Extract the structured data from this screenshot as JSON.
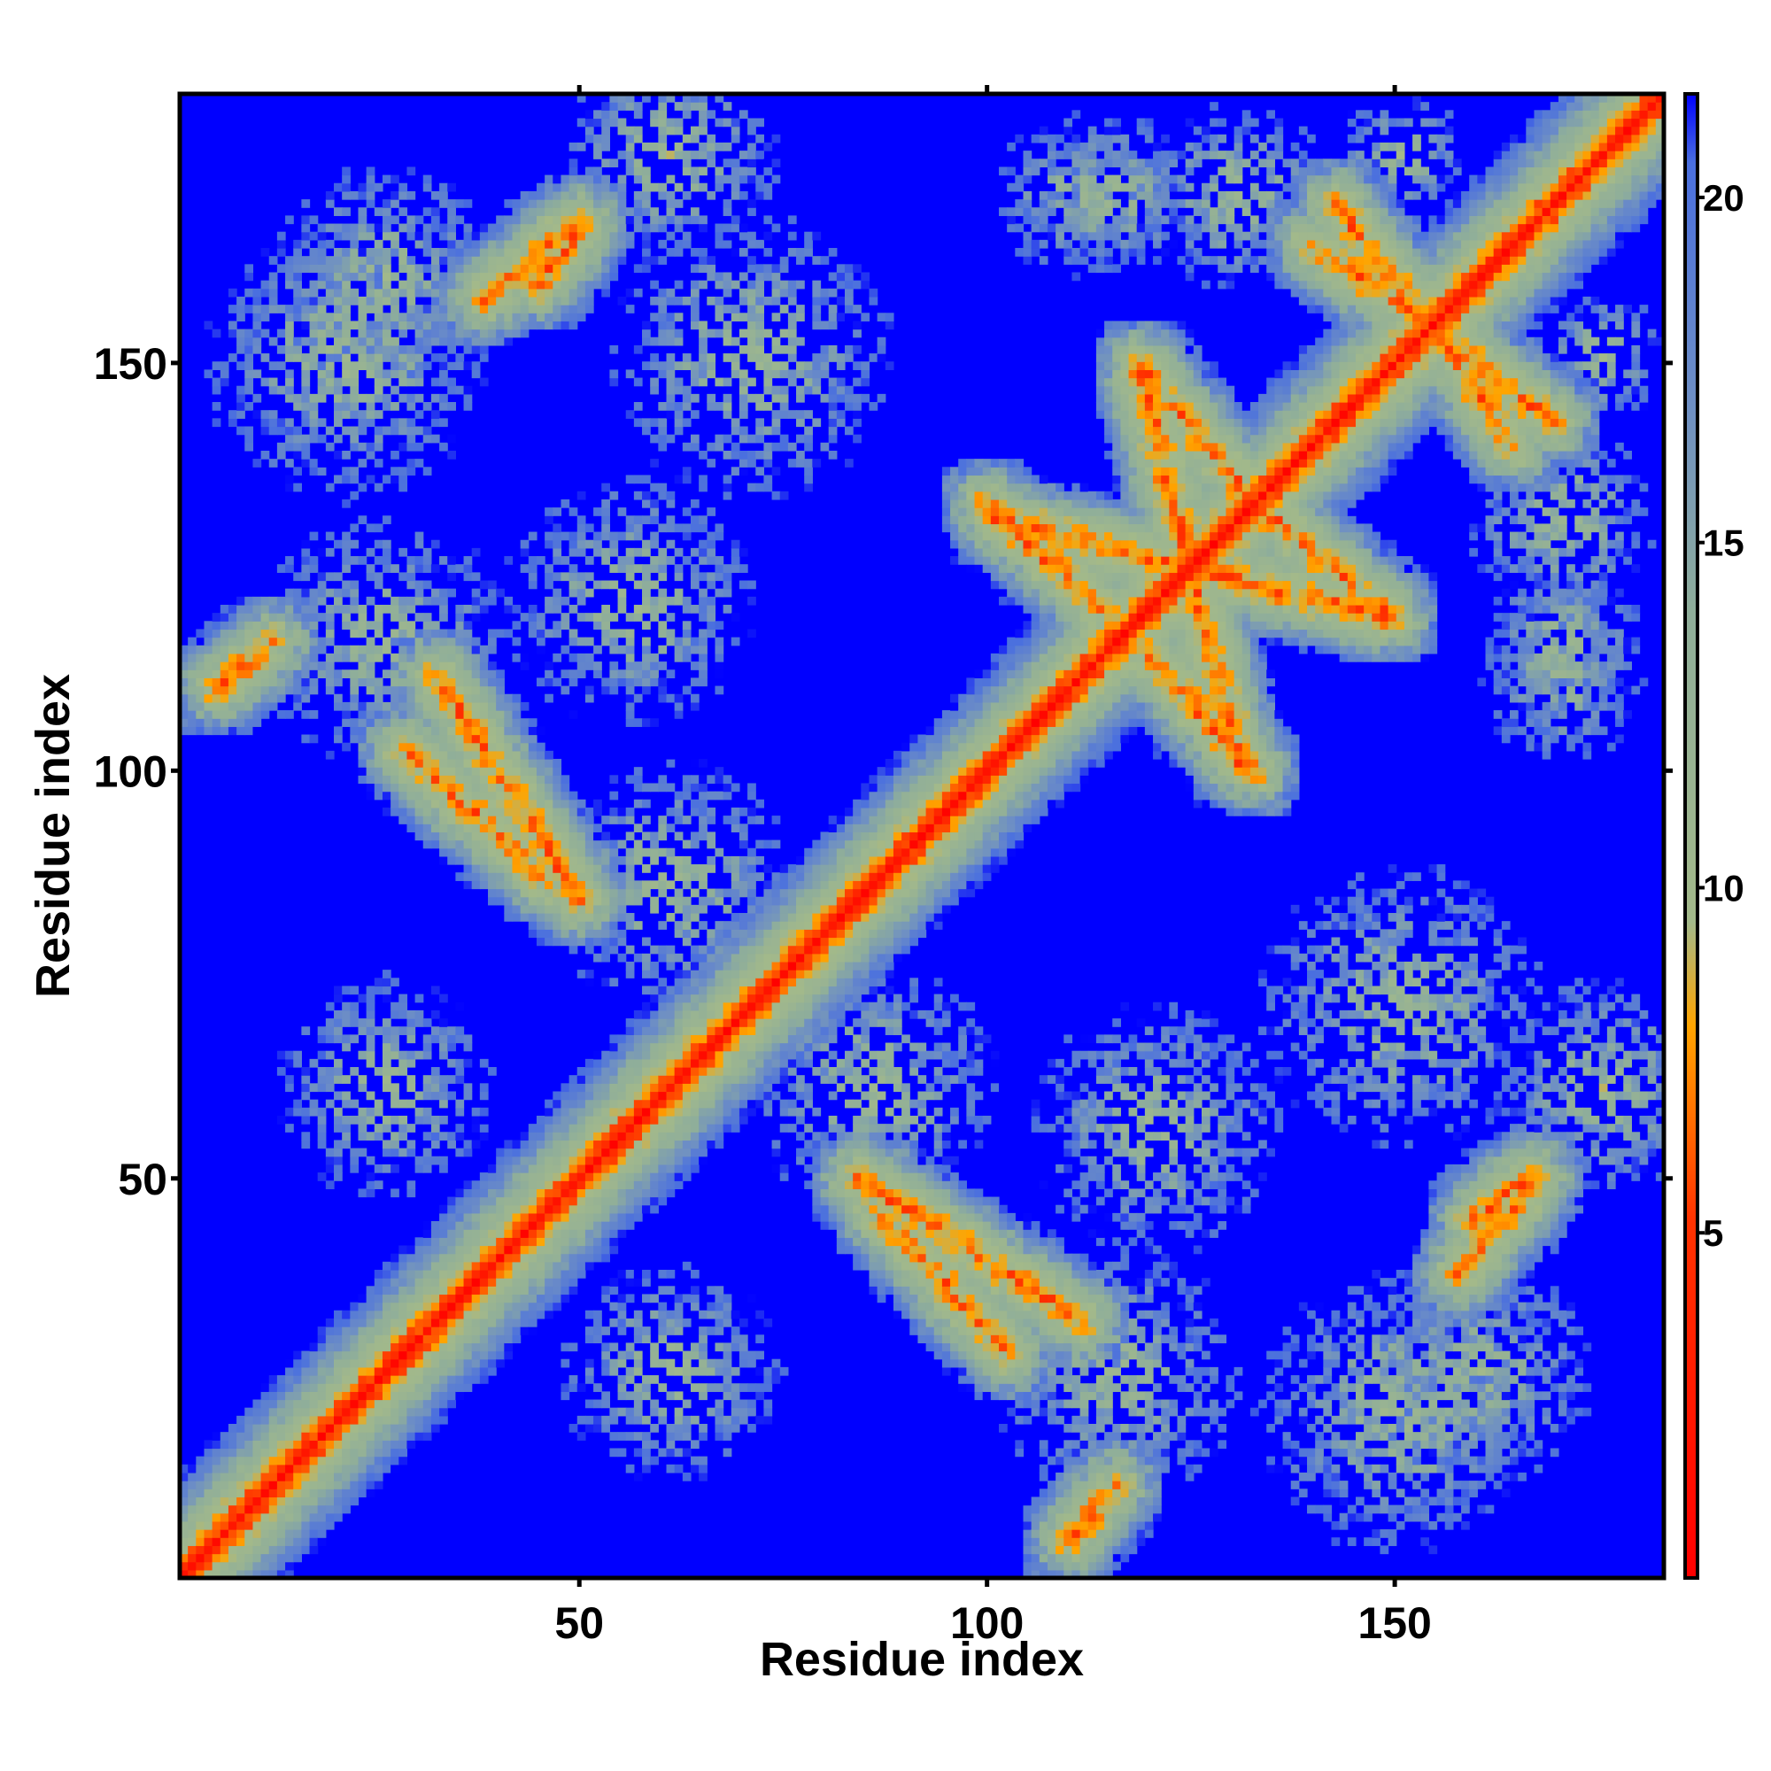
{
  "chart_data": {
    "type": "heatmap",
    "title": "",
    "xlabel": "Residue index",
    "ylabel": "Residue index",
    "xlim": [
      1,
      183
    ],
    "ylim": [
      1,
      183
    ],
    "x_ticks": [
      50,
      100,
      150
    ],
    "y_ticks": [
      50,
      100,
      150
    ],
    "n_residues": 183,
    "grid": false,
    "matrix_symmetric": true,
    "colorbar": {
      "ticks": [
        5,
        10,
        15,
        20
      ],
      "range": [
        0,
        21.5
      ],
      "colors": [
        {
          "value": 0,
          "color": "#ff0000"
        },
        {
          "value": 5.2,
          "color": "#ff3300"
        },
        {
          "value": 8,
          "color": "#ffa500"
        },
        {
          "value": 9.5,
          "color": "#a3b98a"
        },
        {
          "value": 14,
          "color": "#8fae9a"
        },
        {
          "value": 17,
          "color": "#6e8fc4"
        },
        {
          "value": 20.5,
          "color": "#4a6fdf"
        },
        {
          "value": 21.5,
          "color": "#0000ff"
        }
      ],
      "background_color": "#0000ff"
    },
    "description_of_structure": {
      "contact_cutoff": 21.5,
      "helix_segments": [
        [
          1,
          50
        ],
        [
          52,
          105
        ],
        [
          106,
          130
        ],
        [
          118,
          155
        ],
        [
          130,
          183
        ]
      ],
      "off_diagonal_strands": [
        {
          "i": [
            119,
            131
          ],
          "j": [
            150,
            101
          ]
        },
        {
          "i": [
            155,
            165
          ],
          "j": [
            155,
            140
          ]
        },
        {
          "i": [
            143,
            152
          ],
          "j": [
            170,
            158
          ]
        },
        {
          "i": [
            100,
            115
          ],
          "j": [
            133,
            119
          ]
        },
        {
          "i": [
            133,
            150
          ],
          "j": [
            133,
            119
          ]
        },
        {
          "i": [
            160,
            167
          ],
          "j": [
            45,
            50
          ]
        },
        {
          "i": [
            38,
            50
          ],
          "j": [
            158,
            168
          ]
        },
        {
          "i": [
            28,
            46
          ],
          "j": [
            103,
            86
          ]
        },
        {
          "i": [
            84,
            112
          ],
          "j": [
            50,
            32
          ]
        },
        {
          "i": [
            5,
            12
          ],
          "j": [
            110,
            116
          ]
        }
      ]
    }
  }
}
